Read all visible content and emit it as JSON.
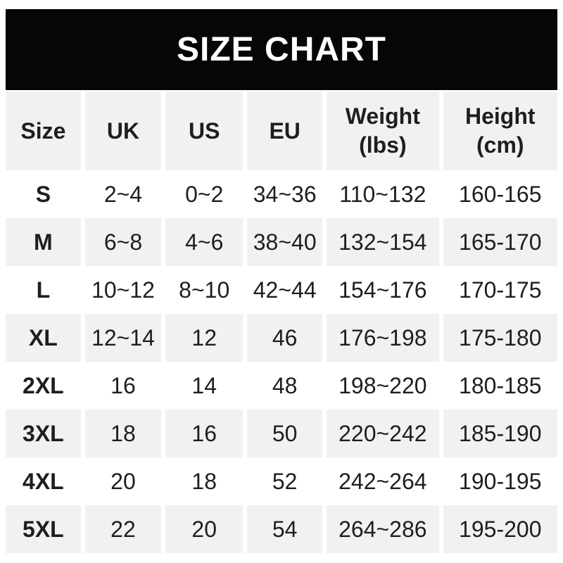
{
  "banner": {
    "title": "SIZE CHART"
  },
  "colors": {
    "banner_bg": "#060606",
    "banner_text": "#ffffff",
    "stripe_bg": "#f1f1f1",
    "row_bg": "#ffffff",
    "text": "#1e1e1e"
  },
  "table": {
    "headers": {
      "size": "Size",
      "uk": "UK",
      "us": "US",
      "eu": "EU",
      "weight": "Weight\n(lbs)",
      "height": "Height\n(cm)"
    },
    "rows": [
      {
        "size": "S",
        "uk": "2~4",
        "us": "0~2",
        "eu": "34~36",
        "weight": "110~132",
        "height": "160-165"
      },
      {
        "size": "M",
        "uk": "6~8",
        "us": "4~6",
        "eu": "38~40",
        "weight": "132~154",
        "height": "165-170"
      },
      {
        "size": "L",
        "uk": "10~12",
        "us": "8~10",
        "eu": "42~44",
        "weight": "154~176",
        "height": "170-175"
      },
      {
        "size": "XL",
        "uk": "12~14",
        "us": "12",
        "eu": "46",
        "weight": "176~198",
        "height": "175-180"
      },
      {
        "size": "2XL",
        "uk": "16",
        "us": "14",
        "eu": "48",
        "weight": "198~220",
        "height": "180-185"
      },
      {
        "size": "3XL",
        "uk": "18",
        "us": "16",
        "eu": "50",
        "weight": "220~242",
        "height": "185-190"
      },
      {
        "size": "4XL",
        "uk": "20",
        "us": "18",
        "eu": "52",
        "weight": "242~264",
        "height": "190-195"
      },
      {
        "size": "5XL",
        "uk": "22",
        "us": "20",
        "eu": "54",
        "weight": "264~286",
        "height": "195-200"
      }
    ]
  },
  "chart_data": {
    "type": "table",
    "title": "SIZE CHART",
    "columns": [
      "Size",
      "UK",
      "US",
      "EU",
      "Weight (lbs)",
      "Height (cm)"
    ],
    "rows": [
      [
        "S",
        "2~4",
        "0~2",
        "34~36",
        "110~132",
        "160-165"
      ],
      [
        "M",
        "6~8",
        "4~6",
        "38~40",
        "132~154",
        "165-170"
      ],
      [
        "L",
        "10~12",
        "8~10",
        "42~44",
        "154~176",
        "170-175"
      ],
      [
        "XL",
        "12~14",
        "12",
        "46",
        "176~198",
        "175-180"
      ],
      [
        "2XL",
        "16",
        "14",
        "48",
        "198~220",
        "180-185"
      ],
      [
        "3XL",
        "18",
        "16",
        "50",
        "220~242",
        "185-190"
      ],
      [
        "4XL",
        "20",
        "18",
        "52",
        "242~264",
        "190-195"
      ],
      [
        "5XL",
        "22",
        "20",
        "54",
        "264~286",
        "195-200"
      ]
    ],
    "layout_hints": {
      "striped_rows": "even rows gray #f1f1f1",
      "cell_gutter": "6px white vertical gutters",
      "weight_range_separator": "~",
      "height_range_separator": "-"
    }
  }
}
